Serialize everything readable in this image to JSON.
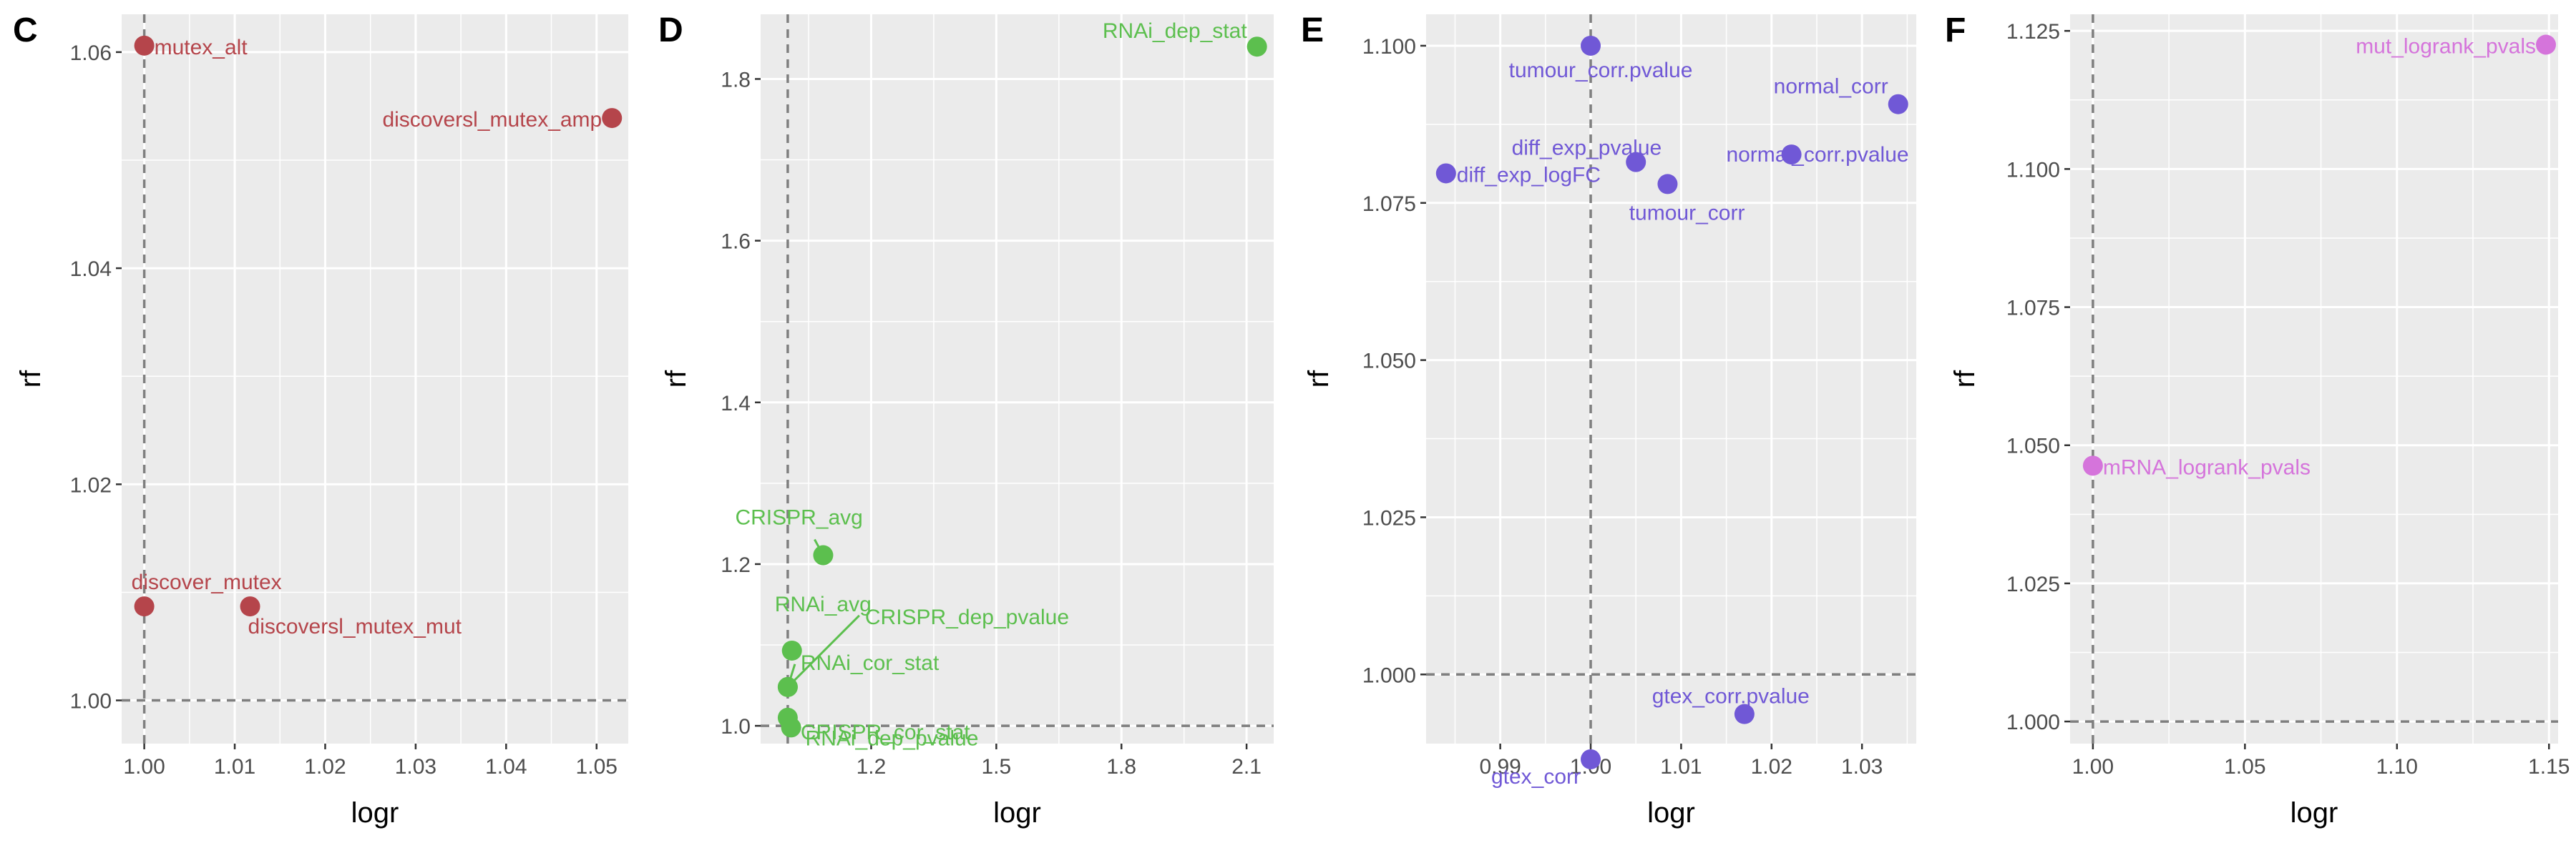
{
  "chart_data": [
    {
      "type": "scatter",
      "panel": "C",
      "xlabel": "logr",
      "ylabel": "rf",
      "xlim": [
        0.9975,
        1.0535
      ],
      "ylim": [
        0.996,
        1.0635
      ],
      "xticks": [
        1.0,
        1.01,
        1.02,
        1.03,
        1.04,
        1.05
      ],
      "xtick_labels": [
        "1.00",
        "1.01",
        "1.02",
        "1.03",
        "1.04",
        "1.05"
      ],
      "yticks": [
        1.0,
        1.02,
        1.04,
        1.06
      ],
      "ytick_labels": [
        "1.00",
        "1.02",
        "1.04",
        "1.06"
      ],
      "vline": 1.0,
      "hline": 1.0,
      "color": "#B5454B",
      "points": [
        {
          "label": "mutex_alt",
          "x": 1.0,
          "y": 1.0606
        },
        {
          "label": "discoversl_mutex_amp",
          "x": 1.0517,
          "y": 1.0539
        },
        {
          "label": "discover_mutex",
          "x": 1.0,
          "y": 1.0087
        },
        {
          "label": "discoversl_mutex_mut",
          "x": 1.0117,
          "y": 1.0087
        }
      ]
    },
    {
      "type": "scatter",
      "panel": "D",
      "xlabel": "logr",
      "ylabel": "rf",
      "xlim": [
        0.935,
        2.165
      ],
      "ylim": [
        0.978,
        1.88
      ],
      "xticks": [
        1.2,
        1.5,
        1.8,
        2.1
      ],
      "xtick_labels": [
        "1.2",
        "1.5",
        "1.8",
        "2.1"
      ],
      "yticks": [
        1.0,
        1.2,
        1.4,
        1.6,
        1.8
      ],
      "ytick_labels": [
        "1.0",
        "1.2",
        "1.4",
        "1.6",
        "1.8"
      ],
      "vline": 1.0,
      "hline": 1.0,
      "color": "#5CBF4E",
      "points": [
        {
          "label": "RNAi_dep_stat",
          "x": 2.125,
          "y": 1.84
        },
        {
          "label": "CRISPR_avg",
          "x": 1.085,
          "y": 1.211
        },
        {
          "label": "RNAi_avg",
          "x": 1.01,
          "y": 1.093
        },
        {
          "label": "CRISPR_dep_pvalue",
          "x": 1.0,
          "y": 1.048
        },
        {
          "label": "RNAi_cor_stat",
          "x": 1.0,
          "y": 1.048
        },
        {
          "label": "CRISPR_cor_stat",
          "x": 1.0,
          "y": 1.01
        },
        {
          "label": "RNAi_dep_pvalue",
          "x": 1.008,
          "y": 0.998
        }
      ]
    },
    {
      "type": "scatter",
      "panel": "E",
      "xlabel": "logr",
      "ylabel": "rf",
      "xlim": [
        0.9818,
        1.036
      ],
      "ylim": [
        0.989,
        1.105
      ],
      "xticks": [
        0.99,
        1.0,
        1.01,
        1.02,
        1.03
      ],
      "xtick_labels": [
        "0.99",
        "1.00",
        "1.01",
        "1.02",
        "1.03"
      ],
      "yticks": [
        1.0,
        1.025,
        1.05,
        1.075,
        1.1
      ],
      "ytick_labels": [
        "1.000",
        "1.025",
        "1.050",
        "1.075",
        "1.100"
      ],
      "vline": 1.0,
      "hline": 1.0,
      "color": "#7058D6",
      "points": [
        {
          "label": "tumour_corr.pvalue",
          "x": 1.0,
          "y": 1.1
        },
        {
          "label": "normal_corr",
          "x": 1.034,
          "y": 1.0907
        },
        {
          "label": "diff_exp_pvalue",
          "x": 1.005,
          "y": 1.0815
        },
        {
          "label": "normal_corr.pvalue",
          "x": 1.0222,
          "y": 1.0827
        },
        {
          "label": "diff_exp_logFC",
          "x": 0.984,
          "y": 1.0797
        },
        {
          "label": "tumour_corr",
          "x": 1.0085,
          "y": 1.078
        },
        {
          "label": "gtex_corr.pvalue",
          "x": 1.017,
          "y": 0.9937
        },
        {
          "label": "gtex_corr",
          "x": 1.0,
          "y": 0.9865
        }
      ]
    },
    {
      "type": "scatter",
      "panel": "F",
      "xlabel": "logr",
      "ylabel": "rf",
      "xlim": [
        0.9925,
        1.153
      ],
      "ylim": [
        0.996,
        1.128
      ],
      "xticks": [
        1.0,
        1.05,
        1.1,
        1.15
      ],
      "xtick_labels": [
        "1.00",
        "1.05",
        "1.10",
        "1.15"
      ],
      "yticks": [
        1.0,
        1.025,
        1.05,
        1.075,
        1.1,
        1.125
      ],
      "ytick_labels": [
        "1.000",
        "1.025",
        "1.050",
        "1.075",
        "1.100",
        "1.125"
      ],
      "vline": 1.0,
      "hline": 1.0,
      "color": "#D574DB",
      "points": [
        {
          "label": "mut_logrank_pvals",
          "x": 1.149,
          "y": 1.1225
        },
        {
          "label": "mRNA_logrank_pvals",
          "x": 1.0,
          "y": 1.0463
        }
      ]
    }
  ]
}
